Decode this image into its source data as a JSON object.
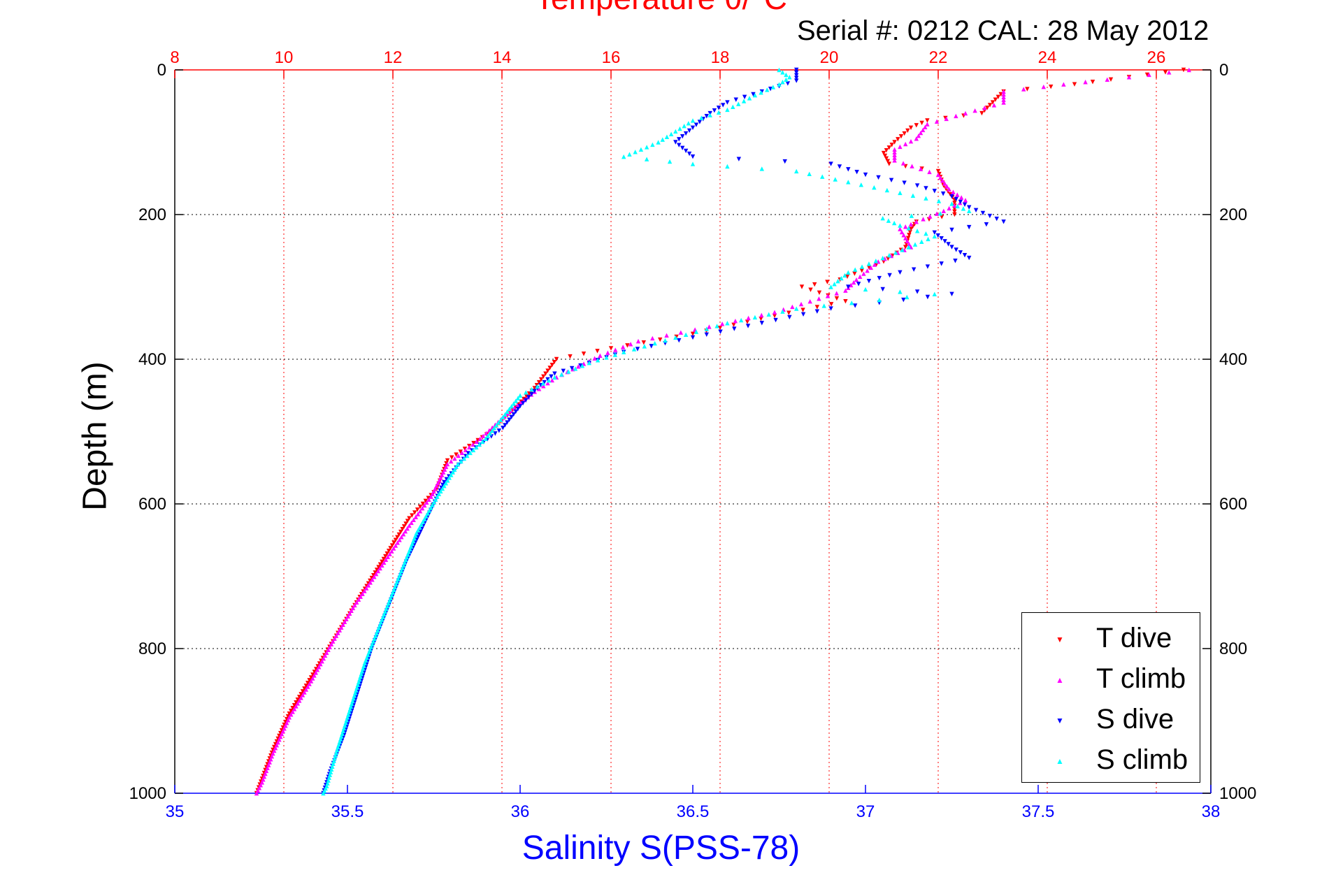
{
  "header": {
    "serial_text": "Serial #: 0212  CAL: 28 May 2012"
  },
  "chart_data": {
    "type": "scatter",
    "title": "Temperature θ/°C",
    "xlabel_bottom": "Salinity S(PSS-78)",
    "ylabel": "Depth (m)",
    "y_axis": {
      "range": [
        0,
        1000
      ],
      "reversed": true,
      "ticks": [
        0,
        200,
        400,
        600,
        800,
        1000
      ]
    },
    "x_top_axis": {
      "label": "Temperature θ/°C",
      "range": [
        8,
        27
      ],
      "ticks": [
        8,
        10,
        12,
        14,
        16,
        18,
        20,
        22,
        24,
        26
      ],
      "color": "#ff0000",
      "grid": true
    },
    "x_bottom_axis": {
      "label": "Salinity S(PSS-78)",
      "range": [
        35,
        38
      ],
      "ticks": [
        35,
        35.5,
        36,
        36.5,
        37,
        37.5,
        38
      ],
      "color": "#0000ff"
    },
    "legend": {
      "position": "bottom-right"
    },
    "series": [
      {
        "name": "T dive",
        "axis": "top",
        "color": "#ff0000",
        "marker": "triangle-down",
        "points": [
          [
            26.5,
            0
          ],
          [
            25.5,
            10
          ],
          [
            24.5,
            20
          ],
          [
            23.2,
            30
          ],
          [
            23.0,
            45
          ],
          [
            22.8,
            60
          ],
          [
            21.8,
            70
          ],
          [
            21.5,
            80
          ],
          [
            21.2,
            100
          ],
          [
            21.0,
            115
          ],
          [
            21.1,
            130
          ],
          [
            22.0,
            140
          ],
          [
            22.1,
            160
          ],
          [
            22.3,
            180
          ],
          [
            22.3,
            200
          ],
          [
            21.6,
            210
          ],
          [
            21.5,
            220
          ],
          [
            21.4,
            245
          ],
          [
            21.0,
            265
          ],
          [
            20.2,
            290
          ],
          [
            19.5,
            300
          ],
          [
            20.3,
            320
          ],
          [
            19.0,
            340
          ],
          [
            17.5,
            365
          ],
          [
            16.0,
            385
          ],
          [
            15.0,
            400
          ],
          [
            14.8,
            420
          ],
          [
            14.6,
            440
          ],
          [
            14.2,
            470
          ],
          [
            13.8,
            500
          ],
          [
            13.0,
            540
          ],
          [
            12.8,
            580
          ],
          [
            12.3,
            620
          ],
          [
            11.8,
            680
          ],
          [
            11.3,
            740
          ],
          [
            10.9,
            790
          ],
          [
            10.5,
            840
          ],
          [
            10.1,
            890
          ],
          [
            9.8,
            940
          ],
          [
            9.6,
            980
          ],
          [
            9.5,
            1000
          ]
        ]
      },
      {
        "name": "T climb",
        "axis": "top",
        "color": "#ff00ff",
        "marker": "triangle-up",
        "points": [
          [
            26.6,
            0
          ],
          [
            25.5,
            10
          ],
          [
            24.3,
            20
          ],
          [
            23.2,
            30
          ],
          [
            23.2,
            45
          ],
          [
            22.5,
            60
          ],
          [
            21.8,
            75
          ],
          [
            21.6,
            95
          ],
          [
            21.2,
            110
          ],
          [
            21.2,
            125
          ],
          [
            22.0,
            145
          ],
          [
            22.2,
            165
          ],
          [
            22.5,
            180
          ],
          [
            22.1,
            195
          ],
          [
            21.6,
            210
          ],
          [
            21.3,
            220
          ],
          [
            21.5,
            245
          ],
          [
            20.9,
            265
          ],
          [
            20.5,
            290
          ],
          [
            20.3,
            305
          ],
          [
            19.0,
            335
          ],
          [
            17.8,
            355
          ],
          [
            16.5,
            375
          ],
          [
            15.8,
            395
          ],
          [
            15.4,
            410
          ],
          [
            15.0,
            425
          ],
          [
            14.6,
            445
          ],
          [
            14.1,
            475
          ],
          [
            13.6,
            510
          ],
          [
            13.0,
            545
          ],
          [
            12.7,
            590
          ],
          [
            12.3,
            630
          ],
          [
            11.8,
            685
          ],
          [
            11.3,
            740
          ],
          [
            10.9,
            790
          ],
          [
            10.5,
            845
          ],
          [
            10.1,
            895
          ],
          [
            9.8,
            945
          ],
          [
            9.6,
            985
          ],
          [
            9.5,
            1000
          ]
        ]
      },
      {
        "name": "S dive",
        "axis": "bottom",
        "color": "#0000ff",
        "marker": "triangle-down",
        "points": [
          [
            36.8,
            0
          ],
          [
            36.8,
            15
          ],
          [
            36.7,
            30
          ],
          [
            36.6,
            45
          ],
          [
            36.55,
            60
          ],
          [
            36.5,
            80
          ],
          [
            36.45,
            100
          ],
          [
            36.5,
            120
          ],
          [
            36.9,
            130
          ],
          [
            37.0,
            145
          ],
          [
            37.15,
            160
          ],
          [
            37.25,
            175
          ],
          [
            37.3,
            190
          ],
          [
            37.4,
            210
          ],
          [
            37.2,
            225
          ],
          [
            37.25,
            245
          ],
          [
            37.3,
            260
          ],
          [
            37.1,
            280
          ],
          [
            36.95,
            300
          ],
          [
            37.25,
            310
          ],
          [
            36.9,
            330
          ],
          [
            36.7,
            350
          ],
          [
            36.5,
            370
          ],
          [
            36.3,
            390
          ],
          [
            36.2,
            405
          ],
          [
            36.1,
            420
          ],
          [
            36.05,
            440
          ],
          [
            36.0,
            465
          ],
          [
            35.95,
            495
          ],
          [
            35.85,
            530
          ],
          [
            35.78,
            570
          ],
          [
            35.73,
            620
          ],
          [
            35.67,
            680
          ],
          [
            35.62,
            740
          ],
          [
            35.57,
            800
          ],
          [
            35.53,
            860
          ],
          [
            35.49,
            920
          ],
          [
            35.45,
            970
          ],
          [
            35.43,
            1000
          ]
        ]
      },
      {
        "name": "S climb",
        "axis": "bottom",
        "color": "#00ffff",
        "marker": "triangle-up",
        "points": [
          [
            36.75,
            0
          ],
          [
            36.78,
            10
          ],
          [
            36.75,
            20
          ],
          [
            36.68,
            35
          ],
          [
            36.6,
            55
          ],
          [
            36.5,
            70
          ],
          [
            36.45,
            85
          ],
          [
            36.4,
            100
          ],
          [
            36.35,
            110
          ],
          [
            36.3,
            120
          ],
          [
            36.5,
            130
          ],
          [
            36.8,
            140
          ],
          [
            36.95,
            155
          ],
          [
            37.1,
            170
          ],
          [
            37.25,
            185
          ],
          [
            37.3,
            195
          ],
          [
            37.05,
            205
          ],
          [
            37.1,
            215
          ],
          [
            37.2,
            230
          ],
          [
            37.05,
            260
          ],
          [
            36.95,
            280
          ],
          [
            36.9,
            300
          ],
          [
            37.2,
            310
          ],
          [
            36.8,
            330
          ],
          [
            36.6,
            350
          ],
          [
            36.45,
            370
          ],
          [
            36.3,
            390
          ],
          [
            36.2,
            405
          ],
          [
            36.1,
            425
          ],
          [
            36.0,
            450
          ],
          [
            35.95,
            480
          ],
          [
            35.9,
            510
          ],
          [
            35.82,
            545
          ],
          [
            35.76,
            590
          ],
          [
            35.7,
            640
          ],
          [
            35.65,
            700
          ],
          [
            35.6,
            760
          ],
          [
            35.55,
            820
          ],
          [
            35.51,
            880
          ],
          [
            35.47,
            940
          ],
          [
            35.44,
            990
          ],
          [
            35.43,
            1000
          ]
        ]
      }
    ]
  }
}
